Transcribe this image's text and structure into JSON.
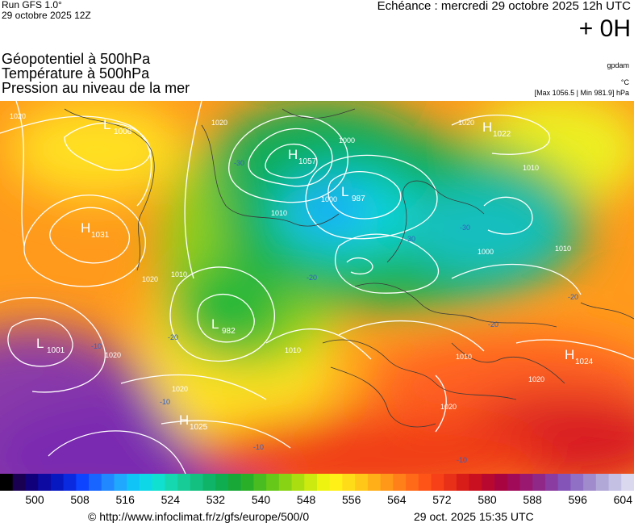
{
  "header": {
    "run_label": "Run GFS 1.0°",
    "run_date": "29 octobre 2025 12Z",
    "echeance": "Echéance : mercredi 29 octobre 2025 12h UTC",
    "lead_time": "+ 0H"
  },
  "titles": {
    "line1": "Géopotentiel à 500hPa",
    "line2": "Température à 500hPa",
    "line3": "Pression au niveau de la mer"
  },
  "units": {
    "geopotential": "gpdam",
    "temperature": "°C",
    "pressure_range": "[Max 1056.5 | Min 981.9] hPa"
  },
  "pressure_centers": [
    {
      "type": "L",
      "value": "1006"
    },
    {
      "type": "H",
      "value": "1057"
    },
    {
      "type": "L",
      "value": "987"
    },
    {
      "type": "H",
      "value": "1022"
    },
    {
      "type": "H",
      "value": "1031"
    },
    {
      "type": "L",
      "value": "982"
    },
    {
      "type": "L",
      "value": "1001"
    },
    {
      "type": "H",
      "value": "1024"
    },
    {
      "type": "H",
      "value": "1025"
    }
  ],
  "isobar_labels": [
    "1020",
    "1020",
    "1010",
    "1000",
    "1010",
    "1020",
    "1010",
    "1010",
    "1020",
    "1020",
    "1010",
    "1020",
    "1000",
    "1010",
    "1020",
    "1020",
    "1000"
  ],
  "temperature_labels": [
    "-30",
    "-30",
    "-30",
    "-20",
    "-20",
    "-20",
    "-20",
    "-10",
    "-10",
    "-10",
    "-10"
  ],
  "scale": {
    "colors": [
      "#000000",
      "#1a0050",
      "#10007a",
      "#0c0aa0",
      "#0818c0",
      "#0a2ae0",
      "#0c44ff",
      "#1866ff",
      "#2288ff",
      "#20a8ff",
      "#10c4f8",
      "#0ed8e8",
      "#10e0d0",
      "#16d8b0",
      "#18cc98",
      "#14c080",
      "#10b468",
      "#10ac50",
      "#18a838",
      "#2ab028",
      "#48bc20",
      "#66c818",
      "#88d414",
      "#aade10",
      "#ccea10",
      "#eef410",
      "#fff018",
      "#ffdc18",
      "#ffc818",
      "#ffb018",
      "#ff9818",
      "#ff8018",
      "#ff6a18",
      "#ff5418",
      "#f84018",
      "#e83018",
      "#d81c18",
      "#c81020",
      "#b80830",
      "#a80440",
      "#a00a58",
      "#9a1870",
      "#902888",
      "#8a3ca0",
      "#8454b8",
      "#9070c4",
      "#a08ccc",
      "#b2a8d8",
      "#c4c0e4",
      "#dad8ee"
    ],
    "labels": [
      "500",
      "508",
      "516",
      "524",
      "532",
      "540",
      "548",
      "556",
      "564",
      "572",
      "580",
      "588",
      "596",
      "604"
    ]
  },
  "footer": {
    "url": "© http://www.infoclimat.fr/z/gfs/europe/500/0",
    "generated": "29 oct. 2025 15:35 UTC"
  }
}
